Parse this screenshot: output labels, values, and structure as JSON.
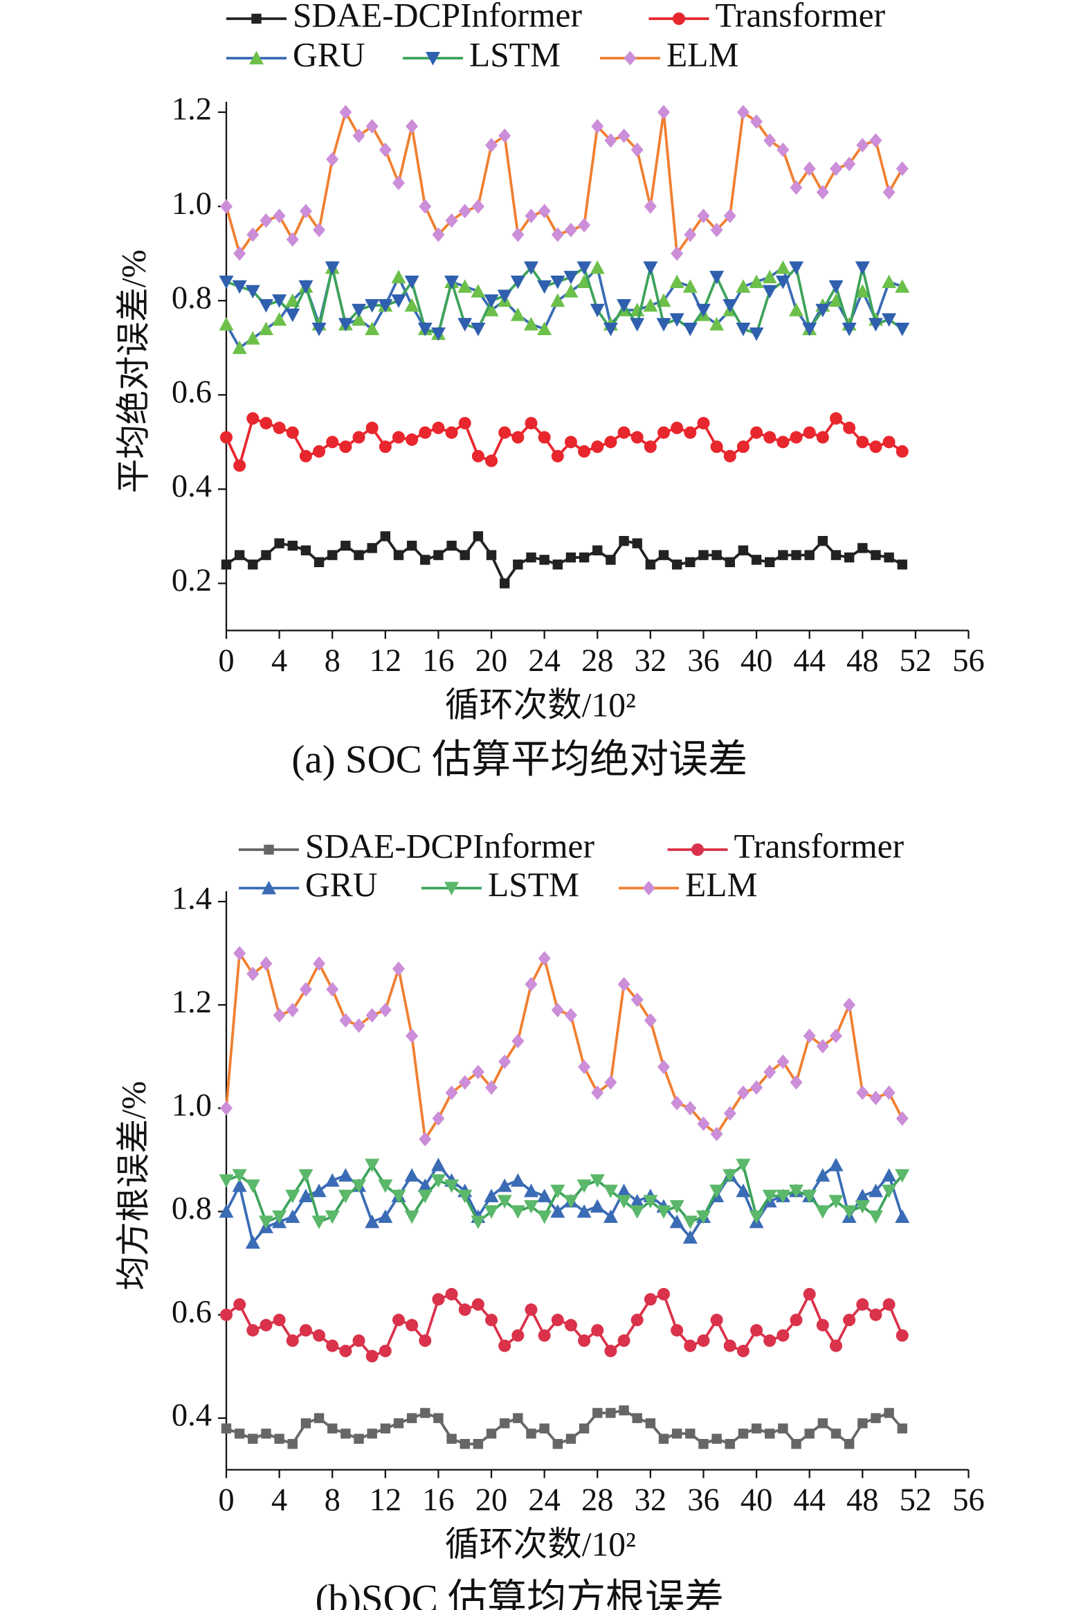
{
  "chart_data": [
    {
      "type": "line",
      "caption": "(a) SOC 估算平均绝对误差",
      "xlabel": "循环次数/10²",
      "ylabel": "平均绝对误差/%",
      "x": [
        0,
        1,
        2,
        3,
        4,
        5,
        6,
        7,
        8,
        9,
        10,
        11,
        12,
        13,
        14,
        15,
        16,
        17,
        18,
        19,
        20,
        21,
        22,
        23,
        24,
        25,
        26,
        27,
        28,
        29,
        30,
        31,
        32,
        33,
        34,
        35,
        36,
        37,
        38,
        39,
        40,
        41,
        42,
        43,
        44,
        45,
        46,
        47,
        48,
        49,
        50,
        51
      ],
      "xlim": [
        0,
        56
      ],
      "xticks": [
        0,
        4,
        8,
        12,
        16,
        20,
        24,
        28,
        32,
        36,
        40,
        44,
        48,
        52,
        56
      ],
      "ylim": [
        0.1,
        1.2
      ],
      "yticks": [
        {
          "value": 0.2,
          "label": "0.2"
        },
        {
          "value": 0.4,
          "label": "0.4"
        },
        {
          "value": 0.6,
          "label": "0.6"
        },
        {
          "value": 0.8,
          "label": "0.8"
        },
        {
          "value": 1.0,
          "label": "1.0"
        },
        {
          "value": 1.2,
          "label": "1.2"
        }
      ],
      "legend": "top",
      "series": [
        {
          "name": "SDAE-DCPInformer",
          "color": "#222222",
          "marker_color": "#222222",
          "marker": "square",
          "values": [
            0.24,
            0.26,
            0.24,
            0.26,
            0.285,
            0.28,
            0.27,
            0.245,
            0.26,
            0.28,
            0.26,
            0.275,
            0.3,
            0.26,
            0.28,
            0.25,
            0.26,
            0.28,
            0.26,
            0.3,
            0.26,
            0.2,
            0.24,
            0.255,
            0.25,
            0.24,
            0.255,
            0.255,
            0.27,
            0.25,
            0.29,
            0.285,
            0.24,
            0.26,
            0.24,
            0.245,
            0.26,
            0.26,
            0.245,
            0.27,
            0.25,
            0.245,
            0.26,
            0.26,
            0.26,
            0.29,
            0.26,
            0.255,
            0.275,
            0.26,
            0.255,
            0.24
          ]
        },
        {
          "name": "Transformer",
          "color": "#e8262d",
          "marker_color": "#e8262d",
          "marker": "circle",
          "values": [
            0.51,
            0.45,
            0.55,
            0.54,
            0.53,
            0.52,
            0.47,
            0.48,
            0.5,
            0.49,
            0.51,
            0.53,
            0.49,
            0.51,
            0.505,
            0.52,
            0.53,
            0.52,
            0.54,
            0.47,
            0.46,
            0.52,
            0.51,
            0.54,
            0.51,
            0.47,
            0.5,
            0.48,
            0.49,
            0.5,
            0.52,
            0.51,
            0.49,
            0.52,
            0.53,
            0.52,
            0.54,
            0.49,
            0.47,
            0.49,
            0.52,
            0.51,
            0.5,
            0.51,
            0.52,
            0.51,
            0.55,
            0.53,
            0.5,
            0.49,
            0.5,
            0.48
          ]
        },
        {
          "name": "GRU",
          "color": "#3a6bb5",
          "marker_color": "#6cc04a",
          "marker": "triangle-up",
          "values": [
            0.75,
            0.7,
            0.72,
            0.74,
            0.76,
            0.8,
            0.83,
            0.75,
            0.87,
            0.75,
            0.76,
            0.74,
            0.79,
            0.85,
            0.79,
            0.74,
            0.73,
            0.84,
            0.83,
            0.82,
            0.78,
            0.8,
            0.77,
            0.75,
            0.74,
            0.8,
            0.82,
            0.84,
            0.87,
            0.75,
            0.78,
            0.78,
            0.79,
            0.8,
            0.84,
            0.83,
            0.77,
            0.75,
            0.78,
            0.83,
            0.84,
            0.85,
            0.87,
            0.78,
            0.74,
            0.79,
            0.8,
            0.75,
            0.82,
            0.76,
            0.84,
            0.83
          ]
        },
        {
          "name": "LSTM",
          "color": "#3da35a",
          "marker_color": "#2f5fae",
          "marker": "triangle-down",
          "values": [
            0.84,
            0.83,
            0.82,
            0.79,
            0.8,
            0.77,
            0.83,
            0.74,
            0.87,
            0.75,
            0.78,
            0.79,
            0.79,
            0.8,
            0.84,
            0.74,
            0.73,
            0.84,
            0.75,
            0.74,
            0.8,
            0.81,
            0.84,
            0.87,
            0.83,
            0.84,
            0.85,
            0.87,
            0.78,
            0.74,
            0.79,
            0.75,
            0.87,
            0.75,
            0.76,
            0.74,
            0.78,
            0.85,
            0.79,
            0.74,
            0.73,
            0.82,
            0.84,
            0.87,
            0.74,
            0.78,
            0.83,
            0.74,
            0.87,
            0.75,
            0.76,
            0.74
          ]
        },
        {
          "name": "ELM",
          "color": "#f07f30",
          "marker_color": "#cc8ed8",
          "marker": "diamond",
          "values": [
            1.0,
            0.9,
            0.94,
            0.97,
            0.98,
            0.93,
            0.99,
            0.95,
            1.1,
            1.2,
            1.15,
            1.17,
            1.12,
            1.05,
            1.17,
            1.0,
            0.94,
            0.97,
            0.99,
            1.0,
            1.13,
            1.15,
            0.94,
            0.98,
            0.99,
            0.94,
            0.95,
            0.96,
            1.17,
            1.14,
            1.15,
            1.12,
            1.0,
            1.2,
            0.9,
            0.94,
            0.98,
            0.95,
            0.98,
            1.2,
            1.18,
            1.14,
            1.12,
            1.04,
            1.08,
            1.03,
            1.08,
            1.09,
            1.13,
            1.14,
            1.03,
            1.08
          ]
        }
      ]
    },
    {
      "type": "line",
      "caption": "(b)SOC 估算均方根误差",
      "xlabel": "循环次数/10²",
      "ylabel": "均方根误差/%",
      "x": [
        0,
        1,
        2,
        3,
        4,
        5,
        6,
        7,
        8,
        9,
        10,
        11,
        12,
        13,
        14,
        15,
        16,
        17,
        18,
        19,
        20,
        21,
        22,
        23,
        24,
        25,
        26,
        27,
        28,
        29,
        30,
        31,
        32,
        33,
        34,
        35,
        36,
        37,
        38,
        39,
        40,
        41,
        42,
        43,
        44,
        45,
        46,
        47,
        48,
        49,
        50,
        51
      ],
      "xlim": [
        0,
        56
      ],
      "xticks": [
        0,
        4,
        8,
        12,
        16,
        20,
        24,
        28,
        32,
        36,
        40,
        44,
        48,
        52,
        56
      ],
      "ylim": [
        0.3,
        1.4
      ],
      "yticks": [
        0.4,
        0.6,
        0.8,
        {
          "value": 1.0,
          "label": "1.0"
        },
        1.2,
        1.4
      ],
      "legend": "top",
      "series": [
        {
          "name": "SDAE-DCPInformer",
          "color": "#666666",
          "marker_color": "#666666",
          "marker": "square",
          "values": [
            0.38,
            0.37,
            0.36,
            0.37,
            0.36,
            0.35,
            0.39,
            0.4,
            0.38,
            0.37,
            0.36,
            0.37,
            0.38,
            0.39,
            0.4,
            0.41,
            0.4,
            0.36,
            0.35,
            0.35,
            0.37,
            0.39,
            0.4,
            0.37,
            0.38,
            0.35,
            0.36,
            0.38,
            0.41,
            0.41,
            0.415,
            0.4,
            0.39,
            0.36,
            0.37,
            0.37,
            0.35,
            0.36,
            0.35,
            0.37,
            0.38,
            0.37,
            0.38,
            0.35,
            0.37,
            0.39,
            0.37,
            0.35,
            0.39,
            0.4,
            0.41,
            0.38
          ]
        },
        {
          "name": "Transformer",
          "color": "#d9324a",
          "marker_color": "#d9324a",
          "marker": "circle",
          "values": [
            0.6,
            0.62,
            0.57,
            0.58,
            0.59,
            0.55,
            0.57,
            0.56,
            0.54,
            0.53,
            0.55,
            0.52,
            0.53,
            0.59,
            0.58,
            0.55,
            0.63,
            0.64,
            0.61,
            0.62,
            0.59,
            0.54,
            0.56,
            0.61,
            0.56,
            0.59,
            0.58,
            0.55,
            0.57,
            0.53,
            0.55,
            0.59,
            0.63,
            0.64,
            0.57,
            0.54,
            0.55,
            0.59,
            0.54,
            0.53,
            0.57,
            0.55,
            0.56,
            0.59,
            0.64,
            0.58,
            0.54,
            0.59,
            0.62,
            0.6,
            0.62,
            0.56
          ]
        },
        {
          "name": "GRU",
          "color": "#3a6bb5",
          "marker_color": "#3a6bb5",
          "marker": "triangle-up",
          "values": [
            0.8,
            0.85,
            0.74,
            0.77,
            0.78,
            0.79,
            0.83,
            0.84,
            0.86,
            0.87,
            0.85,
            0.78,
            0.79,
            0.83,
            0.87,
            0.85,
            0.89,
            0.86,
            0.84,
            0.79,
            0.83,
            0.85,
            0.86,
            0.84,
            0.83,
            0.8,
            0.82,
            0.8,
            0.81,
            0.79,
            0.84,
            0.82,
            0.83,
            0.81,
            0.78,
            0.75,
            0.79,
            0.83,
            0.87,
            0.84,
            0.78,
            0.82,
            0.83,
            0.84,
            0.83,
            0.87,
            0.89,
            0.79,
            0.83,
            0.84,
            0.87,
            0.79
          ]
        },
        {
          "name": "LSTM",
          "color": "#3da35a",
          "marker_color": "#5bb86a",
          "marker": "triangle-down",
          "values": [
            0.86,
            0.87,
            0.85,
            0.78,
            0.79,
            0.83,
            0.87,
            0.78,
            0.79,
            0.83,
            0.85,
            0.89,
            0.85,
            0.83,
            0.79,
            0.83,
            0.86,
            0.85,
            0.83,
            0.78,
            0.8,
            0.82,
            0.8,
            0.81,
            0.79,
            0.84,
            0.82,
            0.85,
            0.86,
            0.84,
            0.82,
            0.8,
            0.82,
            0.8,
            0.81,
            0.78,
            0.79,
            0.84,
            0.87,
            0.89,
            0.79,
            0.83,
            0.83,
            0.84,
            0.83,
            0.8,
            0.82,
            0.8,
            0.81,
            0.79,
            0.84,
            0.87
          ]
        },
        {
          "name": "ELM",
          "color": "#f07f30",
          "marker_color": "#cc8ed8",
          "marker": "diamond",
          "values": [
            1.0,
            1.3,
            1.26,
            1.28,
            1.18,
            1.19,
            1.23,
            1.28,
            1.23,
            1.17,
            1.16,
            1.18,
            1.19,
            1.27,
            1.14,
            0.94,
            0.98,
            1.03,
            1.05,
            1.07,
            1.04,
            1.09,
            1.13,
            1.24,
            1.29,
            1.19,
            1.18,
            1.08,
            1.03,
            1.05,
            1.24,
            1.21,
            1.17,
            1.08,
            1.01,
            1.0,
            0.97,
            0.95,
            0.99,
            1.03,
            1.04,
            1.07,
            1.09,
            1.05,
            1.14,
            1.12,
            1.14,
            1.2,
            1.03,
            1.02,
            1.03,
            0.98
          ]
        }
      ]
    }
  ]
}
